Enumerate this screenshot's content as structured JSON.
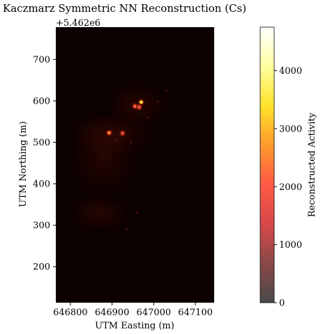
{
  "chart_data": {
    "type": "heatmap",
    "title": "Kaczmarz Symmetric NN Reconstruction (Cs)",
    "xlabel": "UTM Easting (m)",
    "ylabel": "UTM Northing (m)",
    "y_offset_label": "+5.462e6",
    "xlim": [
      646765,
      647145
    ],
    "ylim": [
      113,
      778
    ],
    "x_ticks": [
      646800,
      646900,
      647000,
      647100
    ],
    "x_tick_labels": [
      "646800",
      "646900",
      "647000",
      "647100"
    ],
    "y_ticks": [
      200,
      300,
      400,
      500,
      600,
      700
    ],
    "y_tick_labels": [
      "200",
      "300",
      "400",
      "500",
      "600",
      "700"
    ],
    "colorbar": {
      "label": "Reconstructed Activity",
      "range": [
        0,
        4750
      ],
      "ticks": [
        0,
        1000,
        2000,
        3000,
        4000
      ],
      "tick_labels": [
        "0",
        "1000",
        "2000",
        "3000",
        "4000"
      ],
      "colormap": [
        "#4a4a4a",
        "#8a4848",
        "#d84848",
        "#ff5a46",
        "#ff9a2e",
        "#ffe22a",
        "#ffffa0",
        "#ffffff"
      ]
    },
    "background_color": "#0d0000",
    "hotspots": [
      {
        "x": 646970,
        "y": 597,
        "value": 3200
      },
      {
        "x": 646955,
        "y": 587,
        "value": 1900
      },
      {
        "x": 646965,
        "y": 585,
        "value": 1500
      },
      {
        "x": 646893,
        "y": 523,
        "value": 2200
      },
      {
        "x": 646925,
        "y": 522,
        "value": 1300
      },
      {
        "x": 646945,
        "y": 500,
        "value": 350
      },
      {
        "x": 646910,
        "y": 505,
        "value": 300
      },
      {
        "x": 647010,
        "y": 598,
        "value": 320
      },
      {
        "x": 646985,
        "y": 560,
        "value": 260
      },
      {
        "x": 647030,
        "y": 625,
        "value": 200
      },
      {
        "x": 646960,
        "y": 330,
        "value": 220
      },
      {
        "x": 646935,
        "y": 290,
        "value": 180
      }
    ]
  }
}
